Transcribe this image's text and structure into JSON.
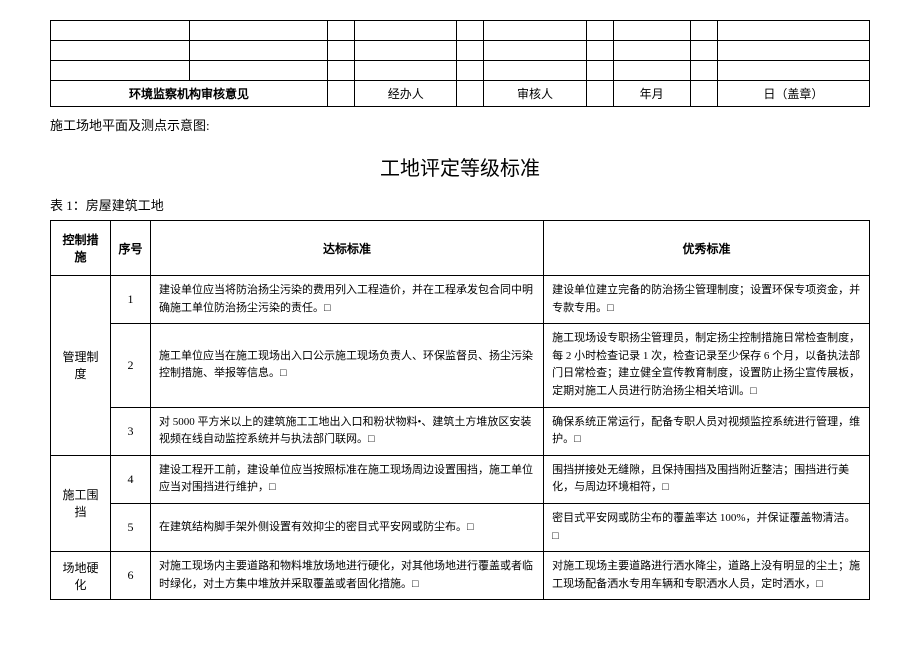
{
  "topTable": {
    "reviewLabel": "环境监察机构审核意见",
    "handlerLabel": "经办人",
    "reviewerLabel": "审核人",
    "dateLabel1": "年月",
    "dateLabel2": "日（盖章）"
  },
  "captionLine": "施工场地平面及测点示意图:",
  "mainTitle": "工地评定等级标准",
  "tableCaption": "表 1：房屋建筑工地",
  "criteriaTable": {
    "headers": {
      "measure": "控制措施",
      "seq": "序号",
      "standard": "达标标准",
      "excellent": "优秀标准"
    },
    "groups": [
      {
        "measure": "管理制度",
        "rows": [
          {
            "seq": "1",
            "standard": "建设单位应当将防治扬尘污染的费用列入工程造价，并在工程承发包合同中明确施工单位防治扬尘污染的责任。□",
            "excellent": "建设单位建立完备的防治扬尘管理制度；设置环保专项资金，并专款专用。□"
          },
          {
            "seq": "2",
            "standard": "施工单位应当在施工现场出入口公示施工现场负责人、环保监督员、扬尘污染控制措施、举报等信息。□",
            "excellent": "施工现场设专职扬尘管理员，制定扬尘控制措施日常检查制度，每 2 小时检查记录 1 次，检查记录至少保存 6 个月，以备执法部门日常检查；建立健全宣传教育制度，设置防止扬尘宣传展板，定期对施工人员进行防治扬尘相关培训。□"
          },
          {
            "seq": "3",
            "standard": "对 5000 平方米以上的建筑施工工地出入口和粉状物料•、建筑土方堆放区安装视频在线自动监控系统并与执法部门联网。□",
            "excellent": "确保系统正常运行，配备专职人员对视频监控系统进行管理，维护。□"
          }
        ]
      },
      {
        "measure": "施工围挡",
        "rows": [
          {
            "seq": "4",
            "standard": "建设工程开工前，建设单位应当按照标准在施工现场周边设置围挡，施工单位应当对围挡进行维护，□",
            "excellent": "围挡拼接处无缝隙，且保持围挡及围挡附近整洁；围挡进行美化，与周边环境相符，□"
          },
          {
            "seq": "5",
            "standard": "在建筑结构脚手架外侧设置有效抑尘的密目式平安网或防尘布。□",
            "excellent": "密目式平安网或防尘布的覆盖率达 100%，并保证覆盖物清洁。□"
          }
        ]
      },
      {
        "measure": "场地硬化",
        "rows": [
          {
            "seq": "6",
            "standard": "对施工现场内主要道路和物料堆放场地进行硬化，对其他场地进行覆盖或者临时绿化，对土方集中堆放并采取覆盖或者固化措施。□",
            "excellent": "对施工现场主要道路进行洒水降尘，道路上没有明显的尘土；施工现场配备洒水专用车辆和专职洒水人员，定时洒水，□"
          }
        ]
      }
    ]
  }
}
